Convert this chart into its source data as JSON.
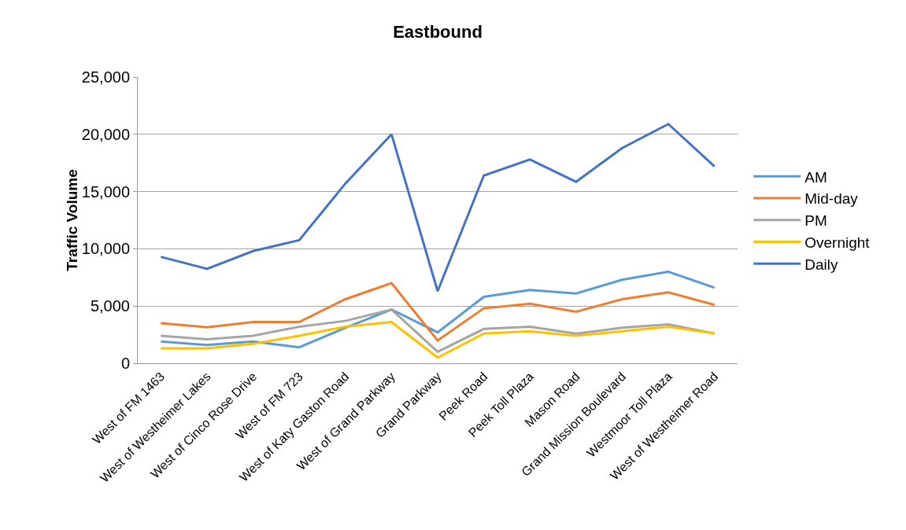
{
  "chart_data": {
    "type": "line",
    "title": "Eastbound",
    "ylabel": "Traffic Volume",
    "categories": [
      "West of FM 1463",
      "West of Westheimer Lakes",
      "West of Cinco Rose Drive",
      "West of FM 723",
      "West of Katy Gaston Road",
      "West of Grand Parkway",
      "Grand Parkway",
      "Peek Road",
      "Peek Toll Plaza",
      "Mason Road",
      "Grand Mission Boulevard",
      "Westmoor Toll Plaza",
      "West of Westheimer Road"
    ],
    "series": [
      {
        "name": "AM",
        "color": "#5b9bd5",
        "values": [
          1900,
          1600,
          1900,
          1400,
          3100,
          4700,
          2700,
          5800,
          6400,
          6100,
          7300,
          8000,
          6600
        ]
      },
      {
        "name": "Mid-day",
        "color": "#ed7d31",
        "values": [
          3500,
          3150,
          3600,
          3600,
          5600,
          7000,
          2000,
          4800,
          5200,
          4500,
          5600,
          6200,
          5100
        ]
      },
      {
        "name": "PM",
        "color": "#a5a5a5",
        "values": [
          2400,
          2100,
          2400,
          3200,
          3700,
          4700,
          1000,
          3000,
          3200,
          2600,
          3100,
          3400,
          2600
        ]
      },
      {
        "name": "Overnight",
        "color": "#ffc000",
        "values": [
          1300,
          1300,
          1700,
          2400,
          3200,
          3600,
          500,
          2600,
          2800,
          2400,
          2800,
          3200,
          2600
        ]
      },
      {
        "name": "Daily",
        "color": "#4472c4",
        "values": [
          9300,
          8250,
          9800,
          10750,
          15700,
          20000,
          6300,
          16400,
          17800,
          15850,
          18800,
          20900,
          17200
        ]
      }
    ],
    "ylim": [
      0,
      25000
    ],
    "yticks": [
      {
        "value": 0,
        "label": "0"
      },
      {
        "value": 5000,
        "label": "5,000"
      },
      {
        "value": 10000,
        "label": "10,000"
      },
      {
        "value": 15000,
        "label": "15,000"
      },
      {
        "value": 20000,
        "label": "20,000"
      },
      {
        "value": 25000,
        "label": "25,000"
      }
    ],
    "grid": "y",
    "legend": "right",
    "marker": "none",
    "line_style": "solid"
  }
}
